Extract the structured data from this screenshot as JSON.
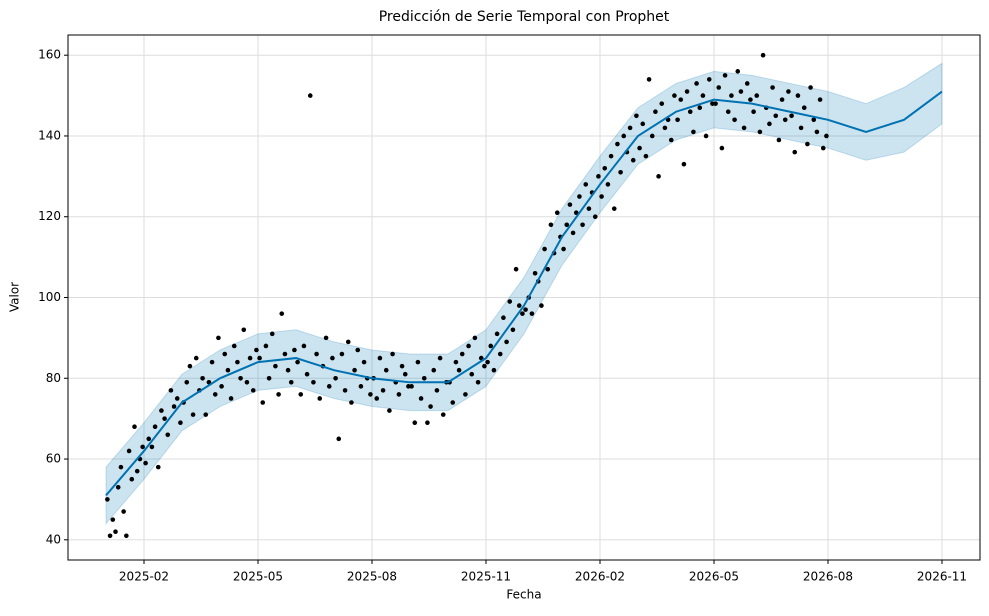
{
  "chart_data": {
    "type": "forecast",
    "title": "Predicción de Serie Temporal con Prophet",
    "x_label": "Fecha",
    "y_label": "Valor",
    "xlim": [
      "2024-12",
      "2026-12"
    ],
    "xticks": [
      "2025-02",
      "2025-05",
      "2025-08",
      "2025-11",
      "2026-02",
      "2026-05",
      "2026-08",
      "2026-11"
    ],
    "ylim": [
      35,
      165
    ],
    "yticks": [
      40,
      60,
      80,
      100,
      120,
      140,
      160
    ],
    "grid": true,
    "x": [
      "2025-01",
      "2025-02",
      "2025-03",
      "2025-04",
      "2025-05",
      "2025-06",
      "2025-07",
      "2025-08",
      "2025-09",
      "2025-10",
      "2025-11",
      "2025-12",
      "2026-01",
      "2026-02",
      "2026-03",
      "2026-04",
      "2026-05",
      "2026-06",
      "2026-07",
      "2026-08",
      "2026-09",
      "2026-10",
      "2026-11"
    ],
    "forecast": {
      "color": "#0072b2",
      "values": [
        51,
        62,
        74,
        80,
        84,
        85,
        82,
        80,
        79,
        79,
        85,
        98,
        115,
        128,
        140,
        146,
        149,
        148,
        146,
        144,
        141,
        144,
        151
      ]
    },
    "interval": {
      "color": "#0072b2",
      "lower": [
        44,
        55,
        67,
        73,
        77,
        78,
        75,
        73,
        72,
        72,
        78,
        91,
        108,
        121,
        133,
        139,
        142,
        141,
        139,
        137,
        134,
        136,
        143
      ],
      "upper": [
        58,
        69,
        81,
        87,
        91,
        92,
        89,
        87,
        86,
        86,
        92,
        105,
        122,
        135,
        147,
        153,
        156,
        155,
        153,
        151,
        148,
        152,
        158
      ]
    },
    "point_color": "#000000",
    "observations": [
      {
        "month": "2025-01",
        "values": [
          50,
          41,
          45,
          42,
          53,
          58,
          47,
          41,
          62,
          55,
          68,
          57,
          60,
          63
        ]
      },
      {
        "month": "2025-02",
        "values": [
          59,
          65,
          63,
          68,
          58,
          72,
          70,
          66,
          77,
          73,
          75,
          69
        ]
      },
      {
        "month": "2025-03",
        "values": [
          74,
          79,
          83,
          71,
          85,
          77,
          80,
          71,
          79,
          84,
          76,
          90
        ]
      },
      {
        "month": "2025-04",
        "values": [
          78,
          86,
          82,
          75,
          88,
          84,
          80,
          92,
          79,
          85,
          77,
          87
        ]
      },
      {
        "month": "2025-05",
        "values": [
          85,
          74,
          88,
          80,
          91,
          83,
          76,
          96,
          86,
          82,
          79,
          87
        ]
      },
      {
        "month": "2025-06",
        "values": [
          84,
          76,
          88,
          81,
          150,
          79,
          86,
          75,
          83,
          90,
          78,
          85
        ]
      },
      {
        "month": "2025-07",
        "values": [
          80,
          65,
          86,
          77,
          89,
          74,
          82,
          87,
          78,
          84,
          80,
          76
        ]
      },
      {
        "month": "2025-08",
        "values": [
          80,
          75,
          85,
          77,
          82,
          72,
          86,
          79,
          76,
          83,
          81,
          78
        ]
      },
      {
        "month": "2025-09",
        "values": [
          78,
          69,
          84,
          75,
          80,
          69,
          73,
          82,
          77,
          85,
          71,
          79
        ]
      },
      {
        "month": "2025-10",
        "values": [
          79,
          74,
          84,
          82,
          86,
          76,
          88,
          81,
          90,
          79,
          85,
          83
        ]
      },
      {
        "month": "2025-11",
        "values": [
          84,
          88,
          82,
          91,
          86,
          95,
          89,
          99,
          92,
          107,
          98,
          96
        ]
      },
      {
        "month": "2025-12",
        "values": [
          97,
          100,
          96,
          106,
          104,
          98,
          112,
          107,
          118,
          111,
          121,
          115
        ]
      },
      {
        "month": "2026-01",
        "values": [
          112,
          118,
          123,
          116,
          121,
          125,
          118,
          128,
          122,
          126,
          120,
          130
        ]
      },
      {
        "month": "2026-02",
        "values": [
          125,
          132,
          128,
          135,
          122,
          138,
          131,
          140,
          136,
          142,
          134,
          145
        ]
      },
      {
        "month": "2026-03",
        "values": [
          137,
          143,
          135,
          154,
          140,
          146,
          130,
          148,
          142,
          144,
          139,
          150
        ]
      },
      {
        "month": "2026-04",
        "values": [
          144,
          149,
          133,
          151,
          146,
          141,
          153,
          147,
          150,
          140,
          154,
          148
        ]
      },
      {
        "month": "2026-05",
        "values": [
          148,
          152,
          137,
          155,
          146,
          150,
          144,
          156,
          151,
          142,
          153,
          149
        ]
      },
      {
        "month": "2026-06",
        "values": [
          146,
          150,
          141,
          160,
          147,
          143,
          152,
          145,
          139,
          149,
          144,
          151
        ]
      },
      {
        "month": "2026-07",
        "values": [
          145,
          136,
          150,
          142,
          147,
          138,
          152,
          144,
          141,
          149,
          137,
          140
        ]
      }
    ]
  }
}
